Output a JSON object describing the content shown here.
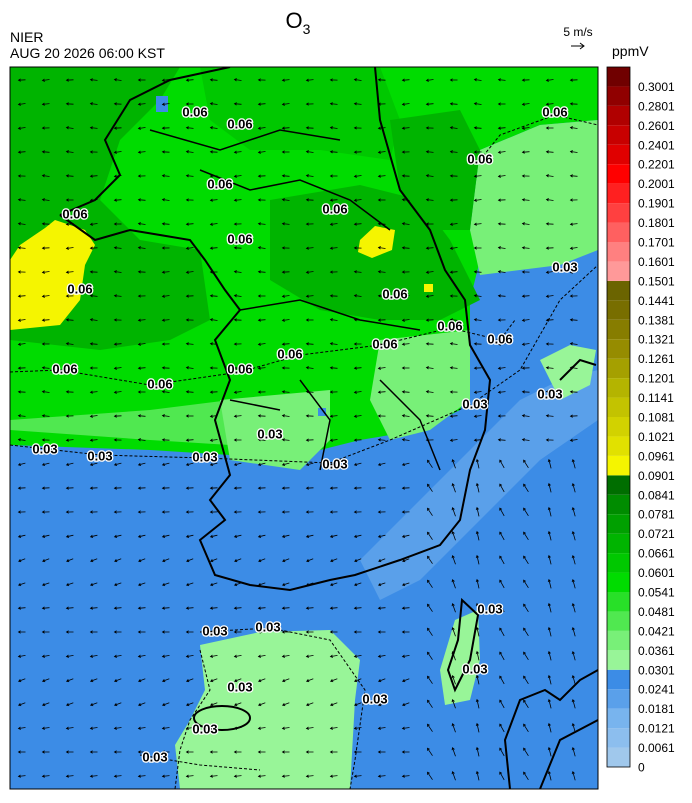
{
  "title": {
    "main": "O",
    "sub": "3"
  },
  "agency": "NIER",
  "datetime": "AUG 20 2026 06:00 KST",
  "wind_scale": "5 m/s",
  "unit": "ppmV",
  "colorbar": {
    "ticks": [
      0,
      0.0061,
      0.0121,
      0.0181,
      0.0241,
      0.0301,
      0.0361,
      0.0421,
      0.0481,
      0.0541,
      0.0601,
      0.0661,
      0.0721,
      0.0781,
      0.0841,
      0.0901,
      0.0961,
      0.1021,
      0.1081,
      0.1141,
      0.1201,
      0.1261,
      0.1321,
      0.1381,
      0.1441,
      0.1501,
      0.1601,
      0.1701,
      0.1801,
      0.1901,
      0.2001,
      0.2201,
      0.2401,
      0.2601,
      0.2801,
      0.3001
    ],
    "colors": [
      "#a0c8ec",
      "#8cbeee",
      "#78b4ee",
      "#5aa0ea",
      "#3c8ce6",
      "#98f598",
      "#78f078",
      "#50e850",
      "#28e028",
      "#00dc00",
      "#00c800",
      "#00b400",
      "#00a000",
      "#008c00",
      "#006e00",
      "#f5f500",
      "#e1e100",
      "#d2d200",
      "#c3c300",
      "#b4b400",
      "#a5a000",
      "#968c00",
      "#877d00",
      "#786e00",
      "#6b6400",
      "#ff9999",
      "#ff8080",
      "#ff6060",
      "#ff4040",
      "#ff2020",
      "#ff0000",
      "#e00000",
      "#c80000",
      "#b00000",
      "#900000",
      "#700000"
    ]
  },
  "contour_labels": [
    0.06,
    0.06,
    0.06,
    0.06,
    0.06,
    0.06,
    0.06,
    0.06,
    0.06,
    0.06,
    0.06,
    0.06,
    0.06,
    0.06,
    0.06,
    0.06,
    0.06,
    0.03,
    0.03,
    0.03,
    0.03,
    0.03,
    0.03,
    0.03,
    0.03,
    0.03,
    0.03,
    0.03,
    0.03,
    0.03,
    0.03,
    0.03,
    0.03
  ]
}
